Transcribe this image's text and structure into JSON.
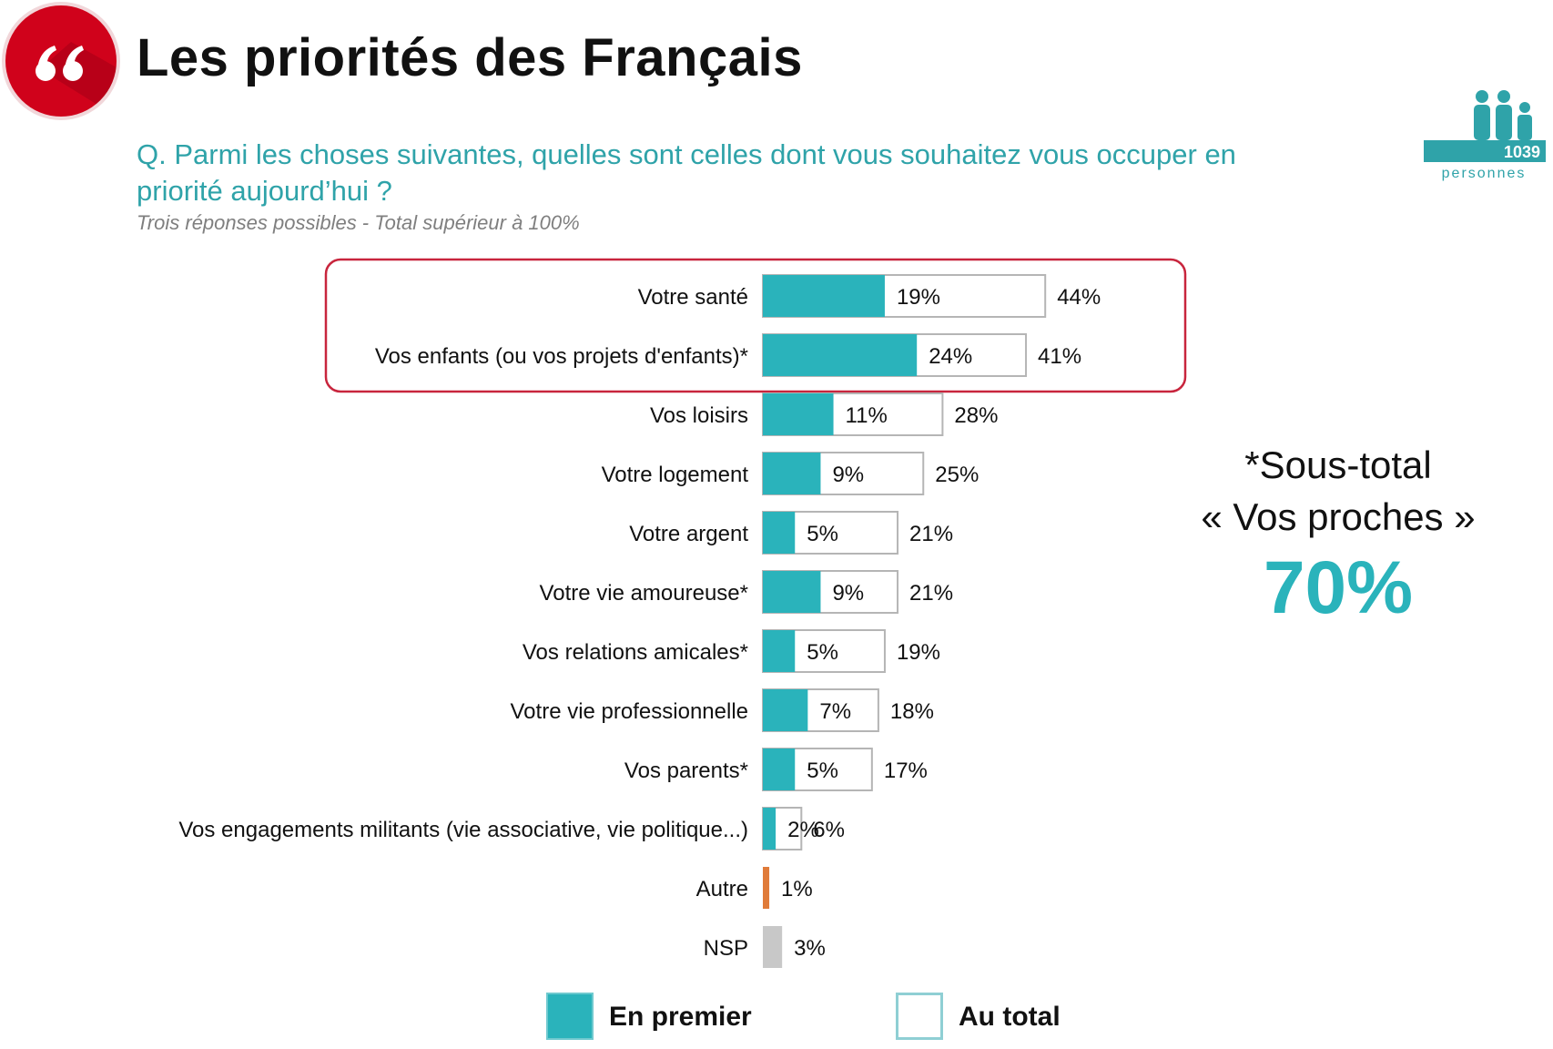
{
  "header": {
    "title": "Les priorités des Français",
    "logo_icon": "quote-icon",
    "logo_color": "#d0021b"
  },
  "question": {
    "text": "Q. Parmi les choses suivantes, quelles sont celles dont vous souhaitez vous occuper en priorité aujourd’hui ?",
    "note": "Trois réponses possibles - Total supérieur à 100%"
  },
  "sample": {
    "count": "1039",
    "label": "personnes",
    "icon": "people-icon",
    "color": "#2fa3a9"
  },
  "subtotal": {
    "line1": "*Sous-total",
    "line2": "« Vos proches »",
    "value": "70%"
  },
  "chart_data": {
    "type": "bar",
    "orientation": "horizontal",
    "categories": [
      "Votre santé",
      "Vos enfants (ou vos projets d'enfants)*",
      "Vos loisirs",
      "Votre logement",
      "Votre argent",
      "Votre vie amoureuse*",
      "Vos relations amicales*",
      "Votre vie professionnelle",
      "Vos parents*",
      "Vos engagements militants (vie associative, vie politique...)",
      "Autre",
      "NSP"
    ],
    "series": [
      {
        "name": "En premier",
        "values": [
          19,
          24,
          11,
          9,
          5,
          9,
          5,
          7,
          5,
          2,
          1,
          3
        ],
        "labels": [
          "19%",
          "24%",
          "11%",
          "9%",
          "5%",
          "9%",
          "5%",
          "7%",
          "5%",
          "2%",
          "1%",
          "3%"
        ],
        "color": "#2ab3bb"
      },
      {
        "name": "Au total",
        "values": [
          44,
          41,
          28,
          25,
          21,
          21,
          19,
          18,
          17,
          6,
          null,
          null
        ],
        "labels": [
          "44%",
          "41%",
          "28%",
          "25%",
          "21%",
          "21%",
          "19%",
          "18%",
          "17%",
          "6%",
          "",
          ""
        ],
        "color": "#ffffff"
      }
    ],
    "special_colors": {
      "Autre": "#e07b39",
      "NSP": "#c8c8c8"
    },
    "highlighted_categories": [
      "Votre santé",
      "Vos enfants (ou vos projets d'enfants)*"
    ],
    "highlight_color": "#c8253d",
    "xlim": [
      0,
      50
    ],
    "grid": false,
    "legend_position": "bottom"
  }
}
